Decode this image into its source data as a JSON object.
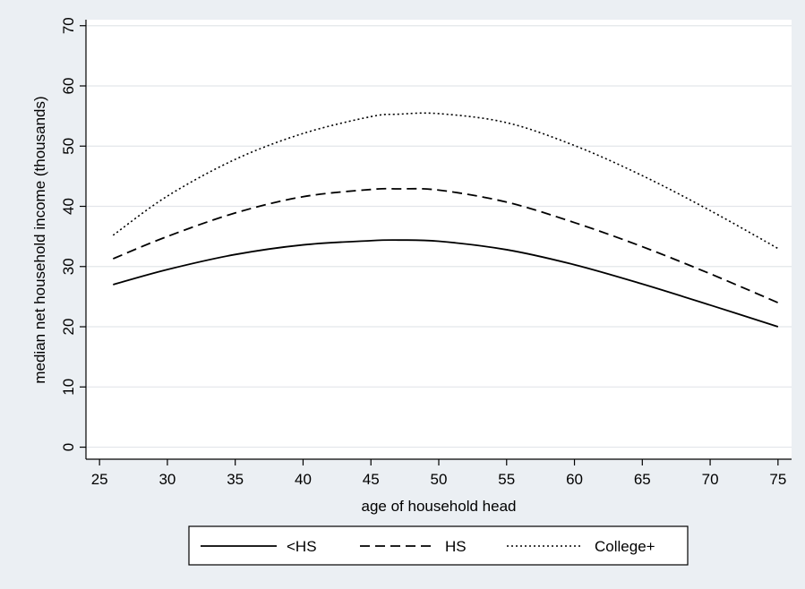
{
  "chart_data": {
    "type": "line",
    "title": "",
    "xlabel": "age of household head",
    "ylabel": "median net household income (thousands)",
    "xlim": [
      24,
      76
    ],
    "ylim": [
      -2,
      71
    ],
    "xticks": [
      25,
      30,
      35,
      40,
      45,
      50,
      55,
      60,
      65,
      70,
      75
    ],
    "yticks": [
      0,
      10,
      20,
      30,
      40,
      50,
      60,
      70
    ],
    "grid": true,
    "legend_position": "bottom",
    "colors": {
      "background": "#ebeff3",
      "plot_area": "#ffffff",
      "line": "#000000",
      "grid": "#e3e6ea"
    },
    "x": [
      26,
      30,
      35,
      40,
      45,
      47,
      50,
      55,
      60,
      65,
      70,
      75
    ],
    "series": [
      {
        "name": "<HS",
        "dash": "solid",
        "values": [
          27.0,
          29.5,
          32.0,
          33.6,
          34.3,
          34.4,
          34.2,
          32.8,
          30.3,
          27.1,
          23.6,
          20.0
        ]
      },
      {
        "name": "HS",
        "dash": "dashed",
        "values": [
          31.3,
          35.0,
          38.9,
          41.6,
          42.8,
          42.9,
          42.7,
          40.7,
          37.3,
          33.3,
          28.8,
          24.0
        ]
      },
      {
        "name": "College+",
        "dash": "dotted",
        "values": [
          35.2,
          41.7,
          47.8,
          52.1,
          54.9,
          55.3,
          55.4,
          53.9,
          50.1,
          45.1,
          39.3,
          33.0
        ]
      }
    ]
  }
}
